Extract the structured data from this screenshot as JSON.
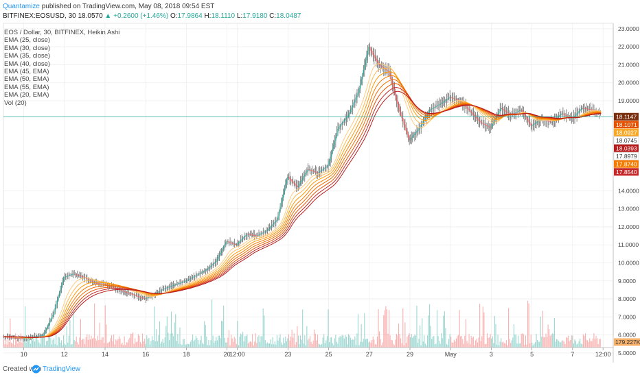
{
  "header": {
    "publisher": "Quantamize",
    "published_text": " published on TradingView.com, May 08, 2018 09:54 EST",
    "symbol_line": "BITFINEX:EOSUSD, 30",
    "last": "18.0570",
    "change": "▲ +0.2600 (+1.46%)",
    "o_label": "O:",
    "o": "17.9864",
    "h_label": "H:",
    "h": "18.1110",
    "l_label": "L:",
    "l": "17.9180",
    "c_label": "C:",
    "c": "18.0487"
  },
  "legend": [
    "EOS / Dollar, 30, BITFINEX, Heikin Ashi",
    "EMA (25, close)",
    "EMA (30, close)",
    "EMA (35, close)",
    "EMA (40, close)",
    "EMA (45, EMA)",
    "EMA (50, EMA)",
    "EMA (55, EMA)",
    "EMA (20, EMA)",
    "Vol (20)"
  ],
  "footer": {
    "created_with": "Created with",
    "brand": "TradingView"
  },
  "colors": {
    "up": "#26a69a",
    "down": "#ef5350",
    "ema_dark": "#b71c1c",
    "ema_mid": "#e65100",
    "ema_light": "#f9a825",
    "grid": "#eeeeee"
  },
  "chart_data": {
    "type": "line",
    "title": "EOS / Dollar, 30, BITFINEX, Heikin Ashi",
    "ylim": [
      5.3,
      23.3
    ],
    "y_ticks": [
      "23.0000",
      "22.0000",
      "21.0000",
      "20.0000",
      "19.0000",
      "14.0000",
      "13.0000",
      "12.0000",
      "11.0000",
      "10.0000",
      "9.0000",
      "8.0000",
      "7.0000",
      "6.0000",
      "5.0000"
    ],
    "y_tick_values": [
      23,
      22,
      21,
      20,
      19,
      14,
      13,
      12,
      11,
      10,
      9,
      8,
      7,
      6,
      5
    ],
    "x_ticks": [
      "10",
      "12",
      "14",
      "16",
      "18",
      "20",
      "12:00",
      "23",
      "25",
      "27",
      "29",
      "May",
      "3",
      "5",
      "7",
      "12:00"
    ],
    "x_tick_days": [
      0,
      2,
      4,
      6,
      8,
      10,
      10.5,
      13,
      15,
      17,
      19,
      21,
      23,
      25,
      27,
      28.5
    ],
    "x_range_days": [
      -1,
      29
    ],
    "price_labels": [
      {
        "text": "18.1147",
        "value": 18.1147,
        "color": "#7a2e0e"
      },
      {
        "text": "18.1071",
        "value": 18.1071,
        "color": "#e65100"
      },
      {
        "text": "18.0927",
        "value": 18.0927,
        "color": "#f9a825"
      },
      {
        "text": "18.0745",
        "value": 18.0745,
        "color": "#ffffff"
      },
      {
        "text": "18.0393",
        "value": 18.0393,
        "color": "#b71c1c"
      },
      {
        "text": "17.8979",
        "value": 17.8979,
        "color": "#ffffff"
      },
      {
        "text": "17.8740",
        "value": 17.874,
        "color": "#f57c00"
      },
      {
        "text": "17.8540",
        "value": 17.854,
        "color": "#c62828"
      }
    ],
    "volume_label": "179.227K",
    "price_path": {
      "x": [
        -1,
        0,
        1,
        1.5,
        2,
        2.5,
        3,
        3.5,
        4,
        4.5,
        5,
        5.5,
        6,
        6.5,
        7,
        7.5,
        8,
        8.5,
        9,
        9.5,
        10,
        10.5,
        11,
        11.5,
        12,
        12.5,
        13,
        13.5,
        14,
        14.5,
        15,
        15.5,
        16,
        16.5,
        17,
        17.5,
        18,
        18.5,
        19,
        19.5,
        20,
        20.5,
        21,
        21.5,
        22,
        22.5,
        23,
        23.5,
        24,
        24.5,
        25,
        25.5,
        26,
        26.5,
        27,
        27.5,
        28,
        28.5,
        29
      ],
      "y": [
        5.9,
        5.8,
        6.0,
        7.2,
        9.2,
        9.4,
        9.2,
        8.9,
        8.8,
        8.6,
        8.4,
        8.2,
        8.0,
        8.3,
        8.6,
        8.8,
        9.0,
        9.3,
        9.6,
        10.1,
        11.2,
        11.0,
        11.6,
        11.5,
        11.8,
        12.4,
        14.8,
        14.2,
        15.2,
        15.0,
        15.4,
        17.5,
        18.2,
        19.5,
        22.0,
        21.0,
        20.6,
        18.5,
        16.8,
        17.5,
        18.5,
        18.8,
        19.2,
        19.0,
        18.4,
        17.8,
        17.5,
        18.6,
        18.2,
        18.5,
        17.6,
        18.0,
        17.8,
        18.3,
        18.0,
        18.6,
        18.5,
        18.2,
        18.1
      ]
    },
    "series": [
      {
        "name": "EMA (20, EMA)",
        "lag": 0.25
      },
      {
        "name": "EMA (25, close)",
        "lag": 0.35
      },
      {
        "name": "EMA (30, close)",
        "lag": 0.45
      },
      {
        "name": "EMA (35, close)",
        "lag": 0.55
      },
      {
        "name": "EMA (40, close)",
        "lag": 0.65
      },
      {
        "name": "EMA (45, EMA)",
        "lag": 0.8
      },
      {
        "name": "EMA (50, EMA)",
        "lag": 0.95
      },
      {
        "name": "EMA (55, EMA)",
        "lag": 1.1
      }
    ]
  }
}
